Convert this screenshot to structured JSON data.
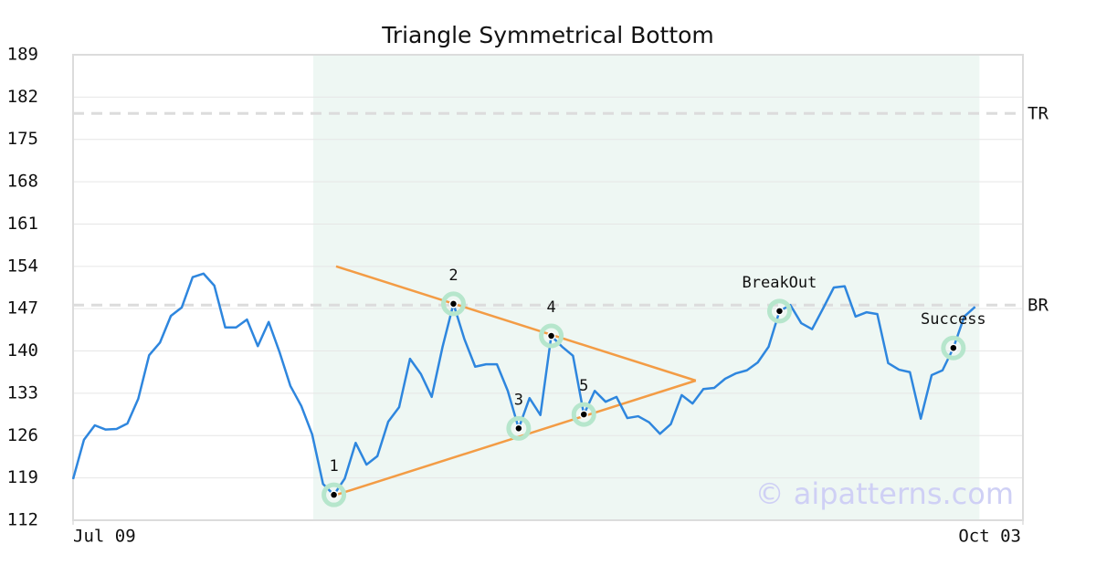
{
  "chart_data": {
    "type": "line",
    "title": "Triangle Symmetrical Bottom",
    "values": [
      118.8,
      125.3,
      127.7,
      127.0,
      127.1,
      128.0,
      132.1,
      139.3,
      141.4,
      145.8,
      147.2,
      152.2,
      152.8,
      150.8,
      143.9,
      143.9,
      145.2,
      140.8,
      144.8,
      139.8,
      134.2,
      130.9,
      126.2,
      118.0,
      116.2,
      118.9,
      124.8,
      121.2,
      122.6,
      128.3,
      130.7,
      138.7,
      136.2,
      132.4,
      140.7,
      147.8,
      142.0,
      137.4,
      137.8,
      137.8,
      133.4,
      127.2,
      132.2,
      129.4,
      142.5,
      140.7,
      139.2,
      129.5,
      133.4,
      131.6,
      132.4,
      128.9,
      129.2,
      128.2,
      126.3,
      127.9,
      132.7,
      131.3,
      133.7,
      133.9,
      135.4,
      136.3,
      136.8,
      138.1,
      140.7,
      146.6,
      147.6,
      144.6,
      143.6,
      147.0,
      150.5,
      150.7,
      145.7,
      146.4,
      146.1,
      138.0,
      136.9,
      136.5,
      128.8,
      136.0,
      136.8,
      140.5,
      145.7,
      147.3
    ],
    "color": "#2e86de",
    "xlim": [
      0,
      87.4
    ],
    "xticks": [
      {
        "value": 0,
        "label": "Jul 09"
      },
      {
        "value": 87.4,
        "label": "Oct 03"
      }
    ],
    "ylim": [
      112,
      189
    ],
    "yticks": [
      112,
      119,
      126,
      133,
      140,
      147,
      154,
      161,
      168,
      175,
      182,
      189
    ],
    "grid": true,
    "shaded_range": [
      22.1,
      83.4
    ],
    "shaded_color": "#eef7f3",
    "ref_lines": [
      {
        "label": "TR",
        "value": 179.3
      },
      {
        "label": "BR",
        "value": 147.6
      }
    ],
    "trendlines": [
      {
        "x": [
          24.2,
          57.3
        ],
        "y": [
          154.0,
          135.1
        ]
      },
      {
        "x": [
          24.2,
          57.3
        ],
        "y": [
          116.2,
          135.1
        ]
      }
    ],
    "trend_color": "#f39c45",
    "points": [
      {
        "label": "1",
        "x": 24,
        "y": 116.2
      },
      {
        "label": "2",
        "x": 35,
        "y": 147.8
      },
      {
        "label": "3",
        "x": 41,
        "y": 127.2
      },
      {
        "label": "4",
        "x": 44,
        "y": 142.5
      },
      {
        "label": "5",
        "x": 47,
        "y": 129.5
      },
      {
        "label": "BreakOut",
        "x": 65,
        "y": 146.6
      },
      {
        "label": "Success",
        "x": 81,
        "y": 140.5
      }
    ],
    "watermark": "© aipatterns.com"
  }
}
